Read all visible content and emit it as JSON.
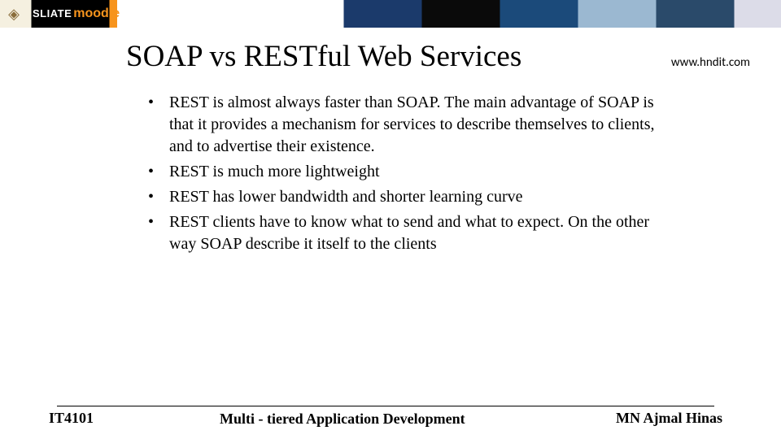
{
  "banner": {
    "sliate": "SLIATE",
    "moodle": "moodle"
  },
  "header": {
    "title": "SOAP vs RESTful Web Services",
    "url": "www.hndit.com"
  },
  "bullets": [
    "REST is almost always  faster than SOAP. The main advantage of SOAP is that it provides a mechanism for services to describe themselves to clients, and to advertise their existence.",
    "REST is much more lightweight",
    "REST has lower bandwidth and shorter learning curve",
    "   REST clients have to know what to send and what to expect. On the other way SOAP describe it itself to the clients"
  ],
  "footer": {
    "course_code": "IT4101",
    "course_title": "Multi - tiered Application Development",
    "author": "MN Ajmal Hinas"
  }
}
